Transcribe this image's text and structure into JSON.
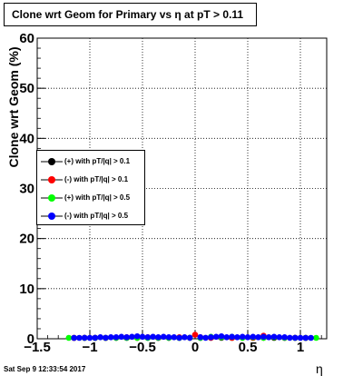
{
  "title": "Clone wrt Geom for Primary vs   η at pT > 0.11",
  "timestamp": "Sat Sep  9 12:33:54 2017",
  "chart_data": {
    "type": "scatter",
    "title": "Clone wrt Geom for Primary vs   η at pT > 0.11",
    "xlabel": "η",
    "ylabel": "Clone wrt Geom (%)",
    "xlim": [
      -1.5,
      1.25
    ],
    "ylim": [
      0,
      60
    ],
    "x_ticks": [
      -1.5,
      -1,
      -0.5,
      0,
      0.5,
      1
    ],
    "x_tick_labels": [
      "−1.5",
      "−1",
      "−0.5",
      "0",
      "0.5",
      "1"
    ],
    "y_ticks": [
      0,
      10,
      20,
      30,
      40,
      50,
      60
    ],
    "y_tick_labels": [
      "0",
      "10",
      "20",
      "30",
      "40",
      "50",
      "60"
    ],
    "grid": true,
    "legend_position": "center-left",
    "series": [
      {
        "name": "(+) with pT/|q| > 0.1",
        "color": "#000000",
        "points": [
          [
            -1.15,
            0.0
          ],
          [
            -1.05,
            0.1
          ],
          [
            -0.95,
            0.1
          ],
          [
            -0.85,
            0.1
          ],
          [
            -0.75,
            0.2
          ],
          [
            -0.65,
            0.1
          ],
          [
            -0.55,
            0.2
          ],
          [
            -0.45,
            0.2
          ],
          [
            -0.35,
            0.1
          ],
          [
            -0.25,
            0.2
          ],
          [
            -0.15,
            0.1
          ],
          [
            -0.05,
            0.2
          ],
          [
            0.05,
            0.1
          ],
          [
            0.15,
            0.2
          ],
          [
            0.25,
            0.2
          ],
          [
            0.35,
            0.1
          ],
          [
            0.45,
            0.2
          ],
          [
            0.55,
            0.1
          ],
          [
            0.65,
            0.2
          ],
          [
            0.75,
            0.1
          ],
          [
            0.85,
            0.1
          ],
          [
            0.95,
            0.1
          ],
          [
            1.05,
            0.0
          ]
        ]
      },
      {
        "name": "(-) with pT/|q| > 0.1",
        "color": "#ff0000",
        "points": [
          [
            -1.15,
            0.0
          ],
          [
            -1.05,
            0.2
          ],
          [
            -0.95,
            0.2
          ],
          [
            -0.85,
            0.1
          ],
          [
            -0.75,
            0.2
          ],
          [
            -0.65,
            0.3
          ],
          [
            -0.55,
            0.2
          ],
          [
            -0.45,
            0.3
          ],
          [
            -0.35,
            0.2
          ],
          [
            -0.25,
            0.2
          ],
          [
            -0.15,
            0.3
          ],
          [
            -0.05,
            0.2
          ],
          [
            0.0,
            0.8
          ],
          [
            0.05,
            0.3
          ],
          [
            0.15,
            0.2
          ],
          [
            0.25,
            0.3
          ],
          [
            0.35,
            0.2
          ],
          [
            0.45,
            0.3
          ],
          [
            0.55,
            0.2
          ],
          [
            0.65,
            0.6
          ],
          [
            0.75,
            0.3
          ],
          [
            0.85,
            0.2
          ],
          [
            0.95,
            0.2
          ],
          [
            1.05,
            0.1
          ]
        ]
      },
      {
        "name": "(+) with pT/|q| > 0.5",
        "color": "#00ff00",
        "points": [
          [
            -1.2,
            0.0
          ],
          [
            -1.05,
            0.0
          ],
          [
            -0.95,
            0.1
          ],
          [
            -0.85,
            0.1
          ],
          [
            -0.75,
            0.1
          ],
          [
            -0.65,
            0.2
          ],
          [
            -0.55,
            0.1
          ],
          [
            -0.45,
            0.1
          ],
          [
            -0.35,
            0.2
          ],
          [
            -0.25,
            0.1
          ],
          [
            -0.15,
            0.1
          ],
          [
            -0.05,
            0.2
          ],
          [
            0.05,
            0.1
          ],
          [
            0.15,
            0.4
          ],
          [
            0.25,
            0.3
          ],
          [
            0.35,
            0.4
          ],
          [
            0.45,
            0.2
          ],
          [
            0.55,
            0.3
          ],
          [
            0.65,
            0.2
          ],
          [
            0.75,
            0.3
          ],
          [
            0.85,
            0.2
          ],
          [
            0.95,
            0.1
          ],
          [
            1.05,
            0.1
          ],
          [
            1.15,
            0.0
          ]
        ]
      },
      {
        "name": "(-) with pT/|q| > 0.5",
        "color": "#0000ff",
        "points": [
          [
            -1.15,
            0.0
          ],
          [
            -1.1,
            0.1
          ],
          [
            -1.05,
            0.2
          ],
          [
            -1.0,
            0.1
          ],
          [
            -0.95,
            0.2
          ],
          [
            -0.9,
            0.3
          ],
          [
            -0.85,
            0.2
          ],
          [
            -0.8,
            0.3
          ],
          [
            -0.75,
            0.3
          ],
          [
            -0.7,
            0.4
          ],
          [
            -0.65,
            0.3
          ],
          [
            -0.6,
            0.4
          ],
          [
            -0.55,
            0.5
          ],
          [
            -0.5,
            0.4
          ],
          [
            -0.45,
            0.3
          ],
          [
            -0.4,
            0.4
          ],
          [
            -0.35,
            0.3
          ],
          [
            -0.3,
            0.4
          ],
          [
            -0.25,
            0.3
          ],
          [
            -0.2,
            0.3
          ],
          [
            -0.15,
            0.2
          ],
          [
            -0.1,
            0.3
          ],
          [
            -0.05,
            0.2
          ],
          [
            0.05,
            0.3
          ],
          [
            0.1,
            0.2
          ],
          [
            0.15,
            0.3
          ],
          [
            0.2,
            0.4
          ],
          [
            0.25,
            0.5
          ],
          [
            0.3,
            0.3
          ],
          [
            0.35,
            0.4
          ],
          [
            0.4,
            0.3
          ],
          [
            0.45,
            0.4
          ],
          [
            0.5,
            0.3
          ],
          [
            0.55,
            0.4
          ],
          [
            0.6,
            0.3
          ],
          [
            0.65,
            0.4
          ],
          [
            0.7,
            0.3
          ],
          [
            0.75,
            0.4
          ],
          [
            0.8,
            0.3
          ],
          [
            0.85,
            0.3
          ],
          [
            0.9,
            0.2
          ],
          [
            0.95,
            0.2
          ],
          [
            1.0,
            0.1
          ],
          [
            1.05,
            0.1
          ],
          [
            1.1,
            0.0
          ]
        ]
      }
    ]
  }
}
